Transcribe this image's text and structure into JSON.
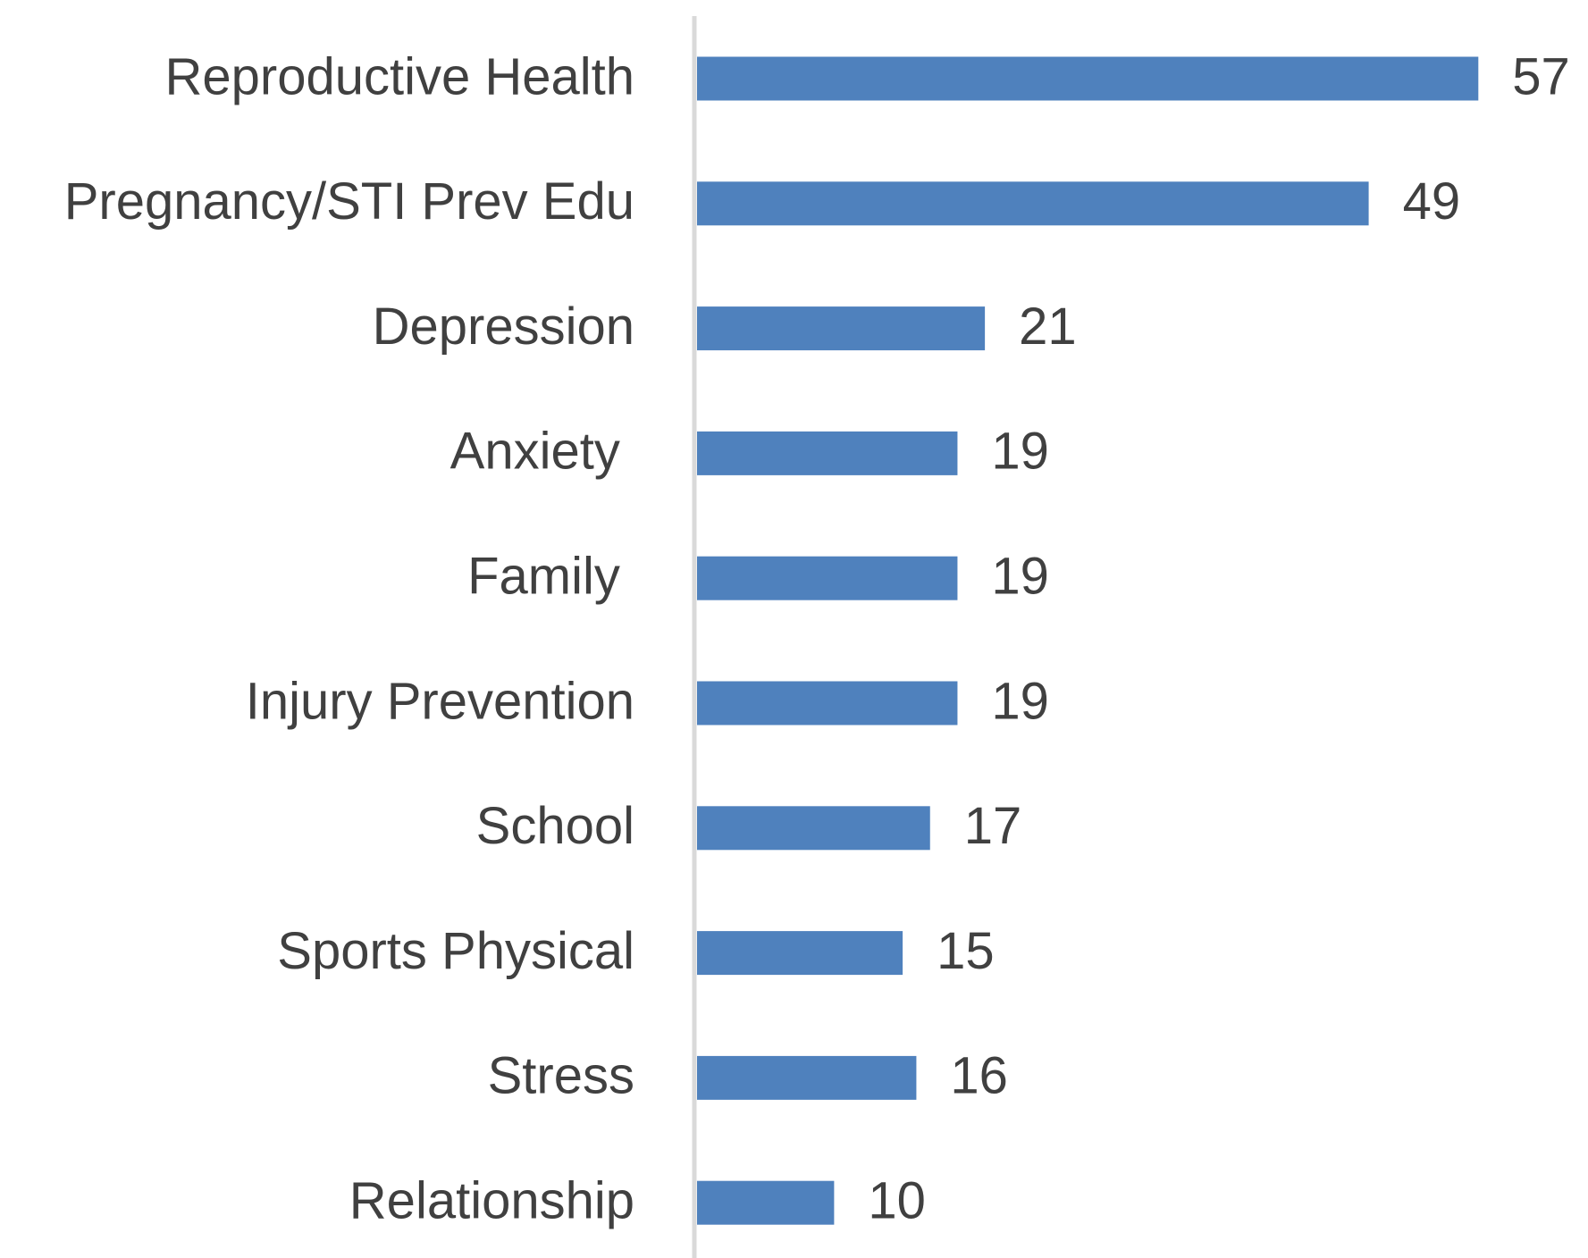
{
  "chart_data": {
    "type": "bar",
    "orientation": "horizontal",
    "categories": [
      "Reproductive Health",
      "Pregnancy/STI Prev Edu",
      "Depression",
      "Anxiety ",
      "Family ",
      "Injury Prevention",
      "School",
      "Sports Physical",
      "Stress",
      "Relationship"
    ],
    "values": [
      57,
      49,
      21,
      19,
      19,
      19,
      17,
      15,
      16,
      10
    ],
    "color": "#4f81bd",
    "xlim": [
      0,
      65
    ]
  }
}
